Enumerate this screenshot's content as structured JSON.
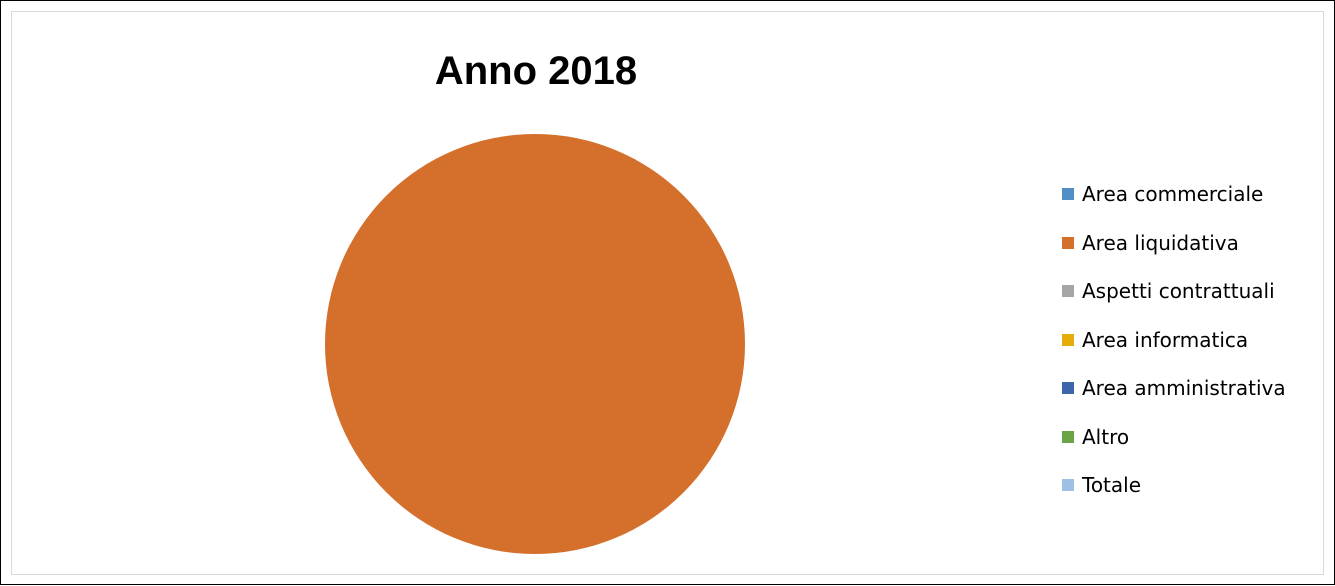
{
  "chart_data": {
    "type": "pie",
    "title": "Anno 2018",
    "legend_position": "right",
    "categories": [
      "Area commerciale",
      "Area liquidativa",
      "Aspetti contrattuali",
      "Area informatica",
      "Area amministrativa",
      "Altro",
      "Totale"
    ],
    "values": [
      0,
      100,
      0,
      0,
      0,
      0,
      0
    ],
    "colors": [
      "#4f8fc6",
      "#d46f2c",
      "#a5a5a5",
      "#e6ad0a",
      "#3c65ab",
      "#6aa444",
      "#9fbfe4"
    ]
  }
}
